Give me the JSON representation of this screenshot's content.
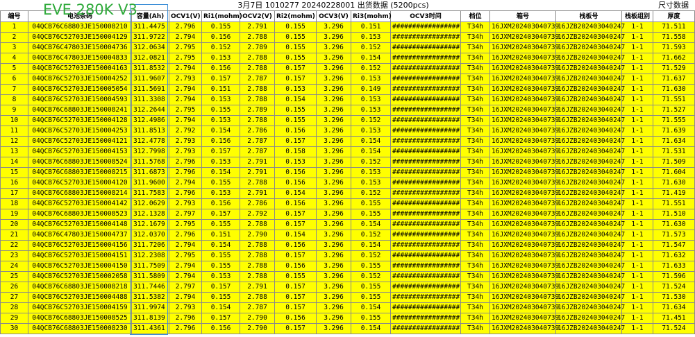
{
  "title": "3月7日 1010277 20240228001 出货数据 (5200pcs)",
  "side_title": "尺寸数据",
  "overlay_label": "EVE 280K V3",
  "table": {
    "header": [
      "编号",
      "电池条码",
      "容量(Ah)",
      "OCV1(V)",
      "Ri1(mohm)",
      "OCV2(V)",
      "Ri2(mohm)",
      "OCV3(V)",
      "Ri3(mohm)",
      "OCV3时间",
      "档位",
      "箱号",
      "栈板号",
      "栈板组别",
      "厚度"
    ],
    "rows": [
      [
        "1",
        "04QCB76C68803JE150008210",
        "311.4475",
        "2.796",
        "0.155",
        "2.791",
        "0.155",
        "3.296",
        "0.151",
        "#################",
        "T34h",
        "16JXM202403040739",
        "16JZB202403040247",
        "1-1",
        "71.511"
      ],
      [
        "2",
        "04QCB76C52703JE150004129",
        "311.9722",
        "2.794",
        "0.156",
        "2.788",
        "0.155",
        "3.296",
        "0.153",
        "#################",
        "T34h",
        "16JXM202403040739",
        "16JZB202403040247",
        "1-1",
        "71.558"
      ],
      [
        "3",
        "04QCB76C47803JE150004736",
        "312.0634",
        "2.795",
        "0.152",
        "2.789",
        "0.155",
        "3.296",
        "0.152",
        "#################",
        "T34h",
        "16JXM202403040739",
        "16JZB202403040247",
        "1-1",
        "71.593"
      ],
      [
        "4",
        "04QCB76C47803JE150004833",
        "312.0821",
        "2.795",
        "0.153",
        "2.788",
        "0.155",
        "3.296",
        "0.154",
        "#################",
        "T34h",
        "16JXM202403040739",
        "16JZB202403040247",
        "1-1",
        "71.662"
      ],
      [
        "5",
        "04QCB76C52703JE150004163",
        "311.8532",
        "2.794",
        "0.156",
        "2.788",
        "0.157",
        "3.296",
        "0.152",
        "#################",
        "T34h",
        "16JXM202403040739",
        "16JZB202403040247",
        "1-1",
        "71.529"
      ],
      [
        "6",
        "04QCB76C52703JE150004252",
        "311.9607",
        "2.793",
        "0.157",
        "2.787",
        "0.157",
        "3.296",
        "0.153",
        "#################",
        "T34h",
        "16JXM202403040739",
        "16JZB202403040247",
        "1-1",
        "71.637"
      ],
      [
        "7",
        "04QCB76C52703JE150005054",
        "311.5691",
        "2.794",
        "0.151",
        "2.788",
        "0.153",
        "3.296",
        "0.149",
        "#################",
        "T34h",
        "16JXM202403040739",
        "16JZB202403040247",
        "1-1",
        "71.630"
      ],
      [
        "8",
        "04QCB76C52703JE150004593",
        "311.3308",
        "2.794",
        "0.153",
        "2.788",
        "0.154",
        "3.296",
        "0.153",
        "#################",
        "T34h",
        "16JXM202403040739",
        "16JZB202403040247",
        "1-1",
        "71.551"
      ],
      [
        "9",
        "04QCB76C68803JE150008241",
        "312.2644",
        "2.795",
        "0.155",
        "2.789",
        "0.155",
        "3.296",
        "0.153",
        "#################",
        "T34h",
        "16JXM202403040739",
        "16JZB202403040247",
        "1-1",
        "71.527"
      ],
      [
        "10",
        "04QCB76C52703JE150004128",
        "312.4986",
        "2.794",
        "0.153",
        "2.788",
        "0.155",
        "3.296",
        "0.152",
        "#################",
        "T34h",
        "16JXM202403040739",
        "16JZB202403040247",
        "1-1",
        "71.555"
      ],
      [
        "11",
        "04QCB76C52703JE150004253",
        "311.8513",
        "2.792",
        "0.154",
        "2.786",
        "0.156",
        "3.296",
        "0.153",
        "#################",
        "T34h",
        "16JXM202403040739",
        "16JZB202403040247",
        "1-1",
        "71.639"
      ],
      [
        "12",
        "04QCB76C52703JE150004121",
        "312.4778",
        "2.793",
        "0.156",
        "2.787",
        "0.157",
        "3.296",
        "0.154",
        "#################",
        "T34h",
        "16JXM202403040739",
        "16JZB202403040247",
        "1-1",
        "71.634"
      ],
      [
        "13",
        "04QCB76C52703JE150004153",
        "312.7998",
        "2.793",
        "0.157",
        "2.787",
        "0.158",
        "3.296",
        "0.154",
        "#################",
        "T34h",
        "16JXM202403040739",
        "16JZB202403040247",
        "1-1",
        "71.531"
      ],
      [
        "14",
        "04QCB76C68803JE150008524",
        "311.5768",
        "2.796",
        "0.153",
        "2.791",
        "0.153",
        "3.296",
        "0.152",
        "#################",
        "T34h",
        "16JXM202403040739",
        "16JZB202403040247",
        "1-1",
        "71.509"
      ],
      [
        "15",
        "04QCB76C68803JE150008215",
        "311.6873",
        "2.796",
        "0.154",
        "2.791",
        "0.156",
        "3.296",
        "0.153",
        "#################",
        "T34h",
        "16JXM202403040739",
        "16JZB202403040247",
        "1-1",
        "71.604"
      ],
      [
        "16",
        "04QCB76C52703JE150004120",
        "311.9600",
        "2.794",
        "0.155",
        "2.788",
        "0.156",
        "3.296",
        "0.153",
        "#################",
        "T34h",
        "16JXM202403040739",
        "16JZB202403040247",
        "1-1",
        "71.630"
      ],
      [
        "17",
        "04QCB76C68803JE150008214",
        "311.7583",
        "2.796",
        "0.153",
        "2.791",
        "0.154",
        "3.296",
        "0.152",
        "#################",
        "T34h",
        "16JXM202403040739",
        "16JZB202403040247",
        "1-1",
        "71.419"
      ],
      [
        "18",
        "04QCB76C52703JE150004142",
        "312.0629",
        "2.793",
        "0.156",
        "2.786",
        "0.156",
        "3.296",
        "0.155",
        "#################",
        "T34h",
        "16JXM202403040739",
        "16JZB202403040247",
        "1-1",
        "71.551"
      ],
      [
        "19",
        "04QCB76C68803JE150008523",
        "312.1328",
        "2.797",
        "0.157",
        "2.792",
        "0.157",
        "3.296",
        "0.155",
        "#################",
        "T34h",
        "16JXM202403040739",
        "16JZB202403040247",
        "1-1",
        "71.510"
      ],
      [
        "20",
        "04QCB76C52703JE150004148",
        "312.1679",
        "2.795",
        "0.155",
        "2.788",
        "0.157",
        "3.296",
        "0.154",
        "#################",
        "T34h",
        "16JXM202403040739",
        "16JZB202403040247",
        "1-1",
        "71.630"
      ],
      [
        "21",
        "04QCB76C47803JE150004737",
        "312.0370",
        "2.796",
        "0.151",
        "2.790",
        "0.154",
        "3.296",
        "0.152",
        "#################",
        "T34h",
        "16JXM202403040739",
        "16JZB202403040247",
        "1-1",
        "71.573"
      ],
      [
        "22",
        "04QCB76C52703JE150004156",
        "311.7206",
        "2.794",
        "0.154",
        "2.788",
        "0.156",
        "3.296",
        "0.154",
        "#################",
        "T34h",
        "16JXM202403040739",
        "16JZB202403040247",
        "1-1",
        "71.547"
      ],
      [
        "23",
        "04QCB76C52703JE150004151",
        "312.2308",
        "2.795",
        "0.155",
        "2.788",
        "0.157",
        "3.296",
        "0.152",
        "#################",
        "T34h",
        "16JXM202403040739",
        "16JZB202403040247",
        "1-1",
        "71.632"
      ],
      [
        "24",
        "04QCB76C52703JE150004150",
        "311.7509",
        "2.794",
        "0.155",
        "2.788",
        "0.156",
        "3.296",
        "0.155",
        "#################",
        "T34h",
        "16JXM202403040739",
        "16JZB202403040247",
        "1-1",
        "71.633"
      ],
      [
        "25",
        "04QCB76C52703JE150002058",
        "311.5809",
        "2.794",
        "0.153",
        "2.788",
        "0.155",
        "3.296",
        "0.152",
        "#################",
        "T34h",
        "16JXM202403040739",
        "16JZB202403040247",
        "1-1",
        "71.596"
      ],
      [
        "26",
        "04QCB76C68803JE150008218",
        "311.7446",
        "2.797",
        "0.157",
        "2.791",
        "0.157",
        "3.296",
        "0.155",
        "#################",
        "T34h",
        "16JXM202403040739",
        "16JZB202403040247",
        "1-1",
        "71.524"
      ],
      [
        "27",
        "04QCB76C52703JE150004488",
        "311.5382",
        "2.794",
        "0.155",
        "2.788",
        "0.157",
        "3.296",
        "0.155",
        "#################",
        "T34h",
        "16JXM202403040739",
        "16JZB202403040247",
        "1-1",
        "71.530"
      ],
      [
        "28",
        "04QCB76C52703JE150004159",
        "311.9974",
        "2.793",
        "0.154",
        "2.787",
        "0.157",
        "3.296",
        "0.154",
        "#################",
        "T34h",
        "16JXM202403040739",
        "16JZB202403040247",
        "1-1",
        "71.634"
      ],
      [
        "29",
        "04QCB76C68803JE150008525",
        "311.8139",
        "2.796",
        "0.157",
        "2.790",
        "0.156",
        "3.296",
        "0.155",
        "#################",
        "T34h",
        "16JXM202403040739",
        "16JZB202403040247",
        "1-1",
        "71.451"
      ],
      [
        "30",
        "04QCB76C68803JE150008230",
        "311.4361",
        "2.796",
        "0.156",
        "2.790",
        "0.157",
        "3.296",
        "0.154",
        "#################",
        "T34h",
        "16JXM202403040739",
        "16JZB202403040247",
        "1-1",
        "71.524"
      ]
    ]
  }
}
